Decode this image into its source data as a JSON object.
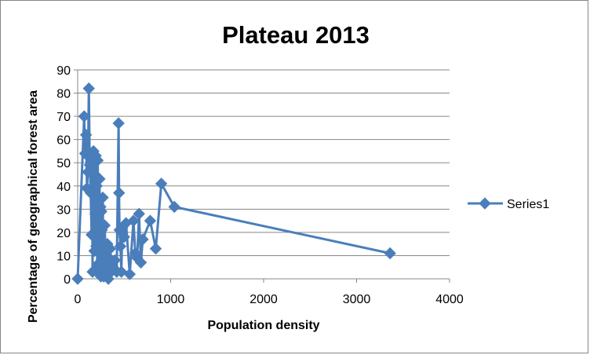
{
  "chart_data": {
    "type": "line",
    "title": "Plateau 2013",
    "xlabel": "Population density",
    "ylabel": "Percentage of geographical forest area",
    "xlim": [
      0,
      4000
    ],
    "ylim": [
      0,
      90
    ],
    "xticks": [
      0,
      1000,
      2000,
      3000,
      4000
    ],
    "yticks": [
      0,
      10,
      20,
      30,
      40,
      50,
      60,
      70,
      80,
      90
    ],
    "grid": true,
    "legend_position": "right",
    "colors": {
      "series": "#4a7ebb"
    },
    "series": [
      {
        "name": "Series1",
        "marker": "diamond",
        "x": [
          0,
          70,
          80,
          90,
          100,
          110,
          120,
          130,
          140,
          150,
          155,
          160,
          165,
          170,
          180,
          185,
          190,
          195,
          200,
          205,
          210,
          215,
          220,
          225,
          230,
          235,
          240,
          245,
          250,
          255,
          260,
          265,
          270,
          275,
          280,
          290,
          300,
          310,
          320,
          330,
          340,
          350,
          360,
          380,
          400,
          420,
          440,
          445,
          450,
          460,
          470,
          480,
          500,
          520,
          560,
          600,
          620,
          640,
          660,
          680,
          700,
          780,
          840,
          900,
          1040,
          3360
        ],
        "y": [
          0,
          70,
          54,
          62,
          39,
          46,
          82,
          49,
          37,
          19,
          52,
          3,
          38,
          55,
          12,
          45,
          28,
          53,
          14,
          40,
          6,
          51,
          35,
          25,
          2,
          43,
          19,
          31,
          1,
          29,
          21,
          4,
          35,
          9,
          1,
          23,
          11,
          2,
          15,
          0,
          9,
          13,
          3,
          5,
          8,
          3,
          67,
          37,
          21,
          14,
          3,
          22,
          18,
          24,
          2,
          25,
          11,
          9,
          28,
          7,
          17,
          25,
          13,
          41,
          31,
          11
        ]
      }
    ]
  }
}
